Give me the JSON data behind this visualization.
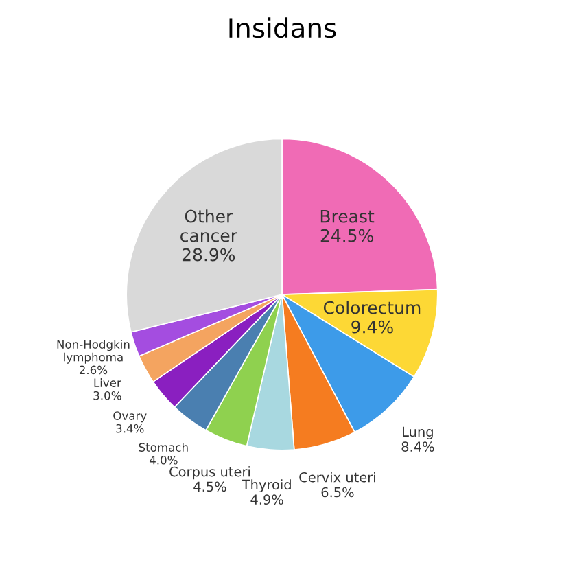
{
  "chart_data": {
    "type": "pie",
    "title": "Insidans",
    "categories": [
      "Breast",
      "Colorectum",
      "Lung",
      "Cervix uteri",
      "Thyroid",
      "Corpus uteri",
      "Stomach",
      "Ovary",
      "Liver",
      "Non-Hodgkin lymphoma",
      "Other cancer"
    ],
    "values": [
      24.5,
      9.4,
      8.4,
      6.5,
      4.9,
      4.5,
      4.0,
      3.4,
      3.0,
      2.6,
      28.9
    ],
    "value_labels": [
      "24.5%",
      "9.4%",
      "8.4%",
      "6.5%",
      "4.9%",
      "4.5%",
      "4.0%",
      "3.4%",
      "3.0%",
      "2.6%",
      "28.9%"
    ],
    "colors": [
      "#f06bb5",
      "#fdd835",
      "#3d9be9",
      "#f57c20",
      "#a8d8e0",
      "#8fd14f",
      "#4a7fb0",
      "#8a1fc0",
      "#f4a460",
      "#a44de0",
      "#d9d9d9"
    ]
  }
}
